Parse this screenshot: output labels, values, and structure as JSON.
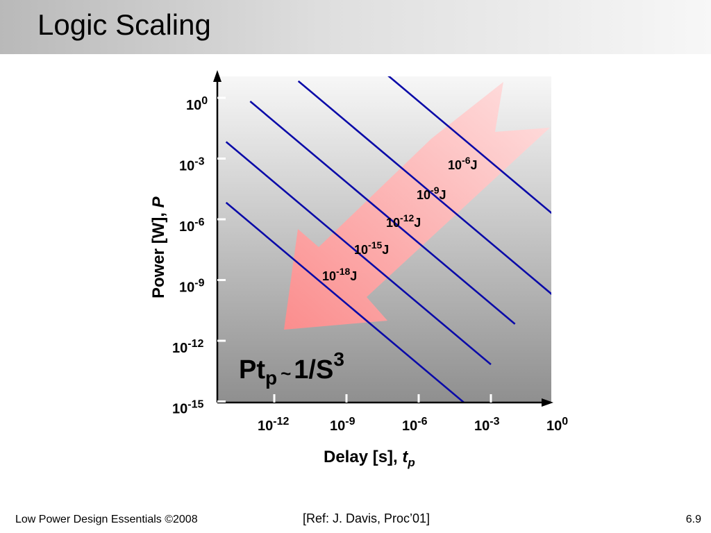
{
  "slide": {
    "title": "Logic Scaling",
    "footer_left": "Low Power Design Essentials ©2008",
    "footer_ref": "[Ref: J. Davis, Proc’01]",
    "page_number": "6.9"
  },
  "chart_data": {
    "type": "line",
    "xlabel": "Delay [s], ",
    "xlabel_var": "t",
    "xlabel_sub": "p",
    "ylabel": "Power [W], ",
    "ylabel_var": "P",
    "xscale": "log",
    "yscale": "log",
    "x_ticks": [
      {
        "base": "10",
        "exp": "-12"
      },
      {
        "base": "10",
        "exp": "-9"
      },
      {
        "base": "10",
        "exp": "-6"
      },
      {
        "base": "10",
        "exp": "-3"
      },
      {
        "base": "10",
        "exp": "0"
      }
    ],
    "y_ticks": [
      {
        "base": "10",
        "exp": "0"
      },
      {
        "base": "10",
        "exp": "-3"
      },
      {
        "base": "10",
        "exp": "-6"
      },
      {
        "base": "10",
        "exp": "-9"
      },
      {
        "base": "10",
        "exp": "-12"
      },
      {
        "base": "10",
        "exp": "-15"
      }
    ],
    "series": [
      {
        "base": "10",
        "exp": "-18",
        "unit": "J",
        "points": [
          [
            1e-14,
            1e-05
          ],
          [
            0.001,
            1e-16
          ]
        ]
      },
      {
        "base": "10",
        "exp": "-15",
        "unit": "J",
        "points": [
          [
            1e-14,
            0.01
          ],
          [
            0.001,
            1e-13
          ]
        ]
      },
      {
        "base": "10",
        "exp": "-12",
        "unit": "J",
        "points": [
          [
            1e-13,
            1.0
          ],
          [
            0.01,
            1e-11
          ]
        ]
      },
      {
        "base": "10",
        "exp": "-9",
        "unit": "J",
        "points": [
          [
            1e-11,
            10.0
          ],
          [
            1.0,
            1e-10
          ]
        ]
      },
      {
        "base": "10",
        "exp": "-6",
        "unit": "J",
        "points": [
          [
            1e-09,
            1000.0
          ],
          [
            100.0,
            1e-08
          ]
        ]
      }
    ],
    "annotation": {
      "main": "Pt",
      "sub": "p",
      "tilde": "~",
      "rest": "1/S",
      "sup": "3"
    },
    "arrow_color": "#ff9c9c",
    "line_color": "#0a0aa8",
    "plot_background": "gradient grey"
  }
}
